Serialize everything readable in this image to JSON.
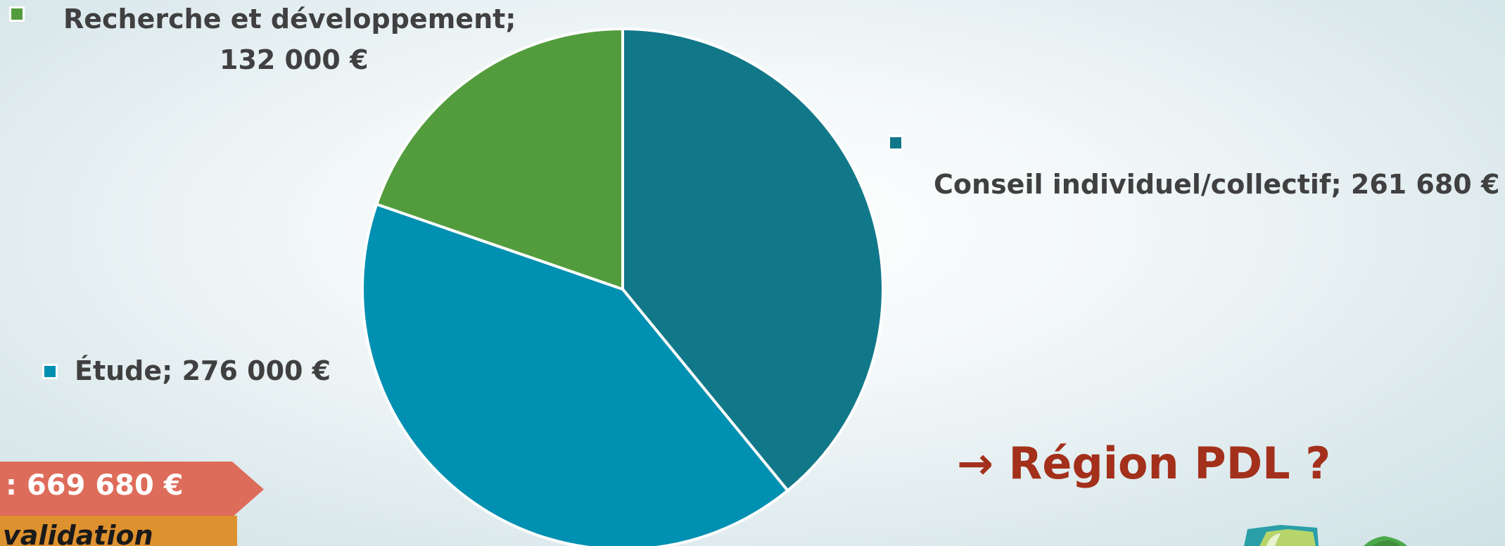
{
  "chart_data": {
    "type": "pie",
    "slices": [
      {
        "label": "Conseil individuel/collectif",
        "value": 261680,
        "display": "261 680 €",
        "color": "#117889"
      },
      {
        "label": "Étude",
        "value": 276000,
        "display": "276 000 €",
        "color": "#0090b2"
      },
      {
        "label": "Recherche et développement",
        "value": 132000,
        "display": "132 000 €",
        "color": "#539c3d"
      }
    ],
    "start": "top",
    "direction": "clockwise"
  },
  "labels": {
    "rd_line1": "Recherche et développement;",
    "rd_line2": "132 000 €",
    "conseil": "Conseil individuel/collectif;  261 680 €",
    "etude": "Étude;  276 000 €"
  },
  "badges": {
    "total": ": 669 680 €",
    "validation": "validation"
  },
  "region": "→ Région PDL ?"
}
